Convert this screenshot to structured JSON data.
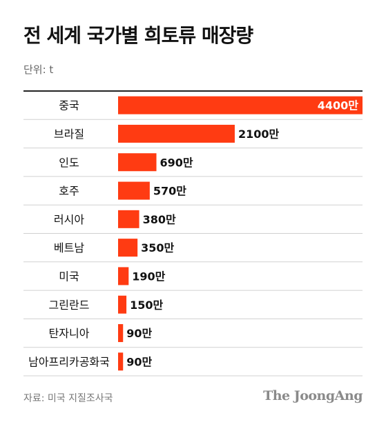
{
  "title": "전 세계 국가별 희토류 매장량",
  "unit_label": "단위: t",
  "source": "자료: 미국 지질조사국",
  "brand": "The JoongAng",
  "colors": {
    "bar": "#ff3b12",
    "bar_label_inside": "#ffffff",
    "bar_label_outside": "#111111",
    "row_divider": "#d0d0d0",
    "text": "#111111"
  },
  "chart_data": {
    "type": "bar",
    "orientation": "horizontal",
    "categories": [
      "중국",
      "브라질",
      "인도",
      "호주",
      "러시아",
      "베트남",
      "미국",
      "그린란드",
      "탄자니아",
      "남아프리카공화국"
    ],
    "values": [
      44000000,
      21000000,
      6900000,
      5700000,
      3800000,
      3500000,
      1900000,
      1500000,
      900000,
      900000
    ],
    "value_labels": [
      "4400만",
      "2100만",
      "690만",
      "570만",
      "380만",
      "350만",
      "190만",
      "150만",
      "90만",
      "90만"
    ],
    "title": "전 세계 국가별 희토류 매장량",
    "xlabel": "",
    "ylabel": "",
    "unit": "t",
    "xlim": [
      0,
      44000000
    ],
    "grid": false,
    "legend": "none"
  }
}
